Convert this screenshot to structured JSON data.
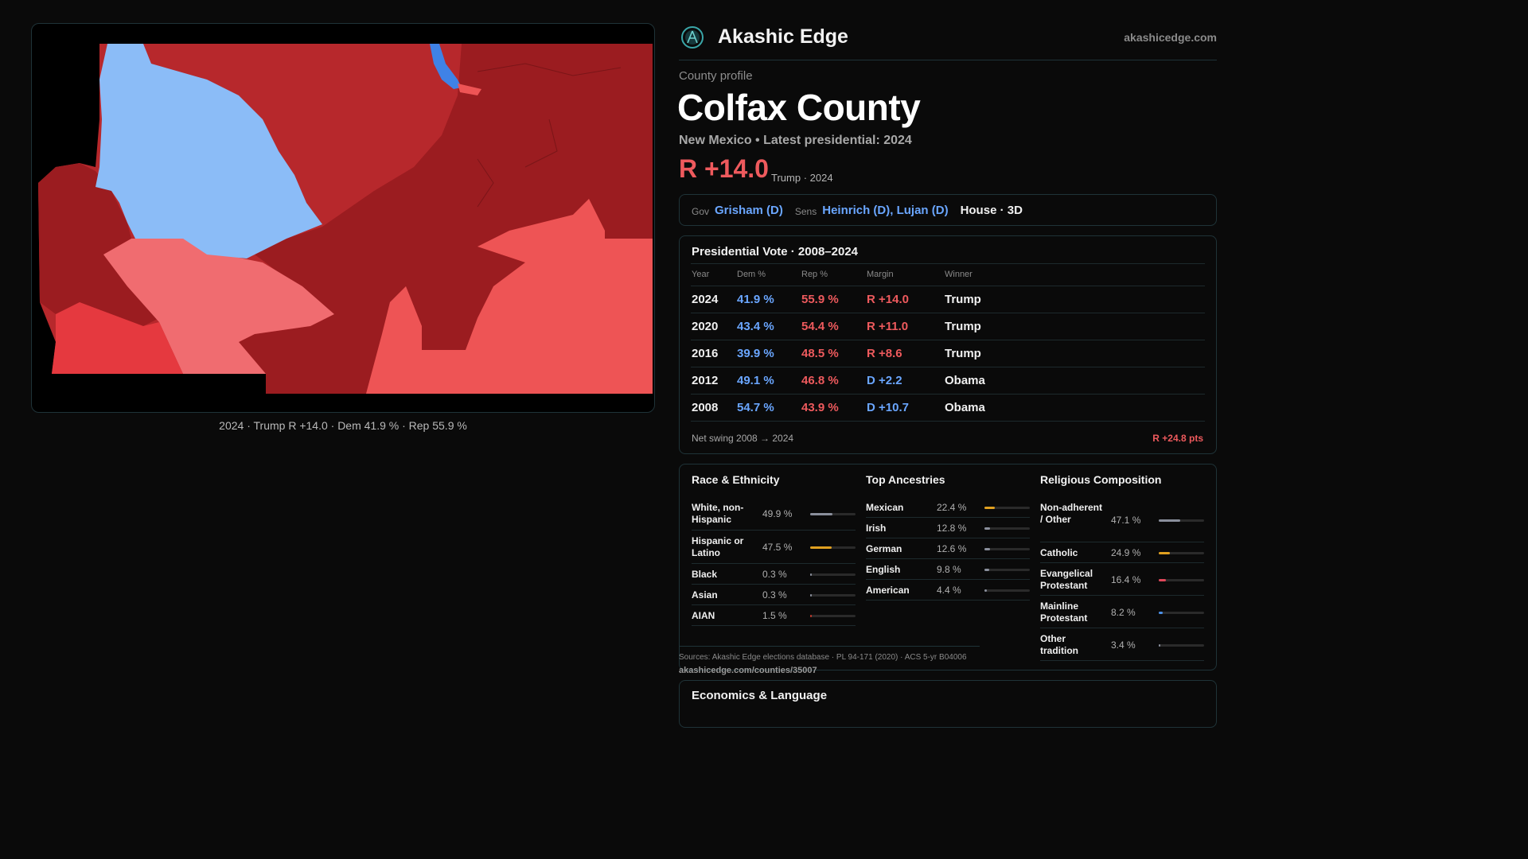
{
  "brand": {
    "name": "Akashic Edge",
    "url": "akashicedge.com"
  },
  "profile": {
    "label": "County profile",
    "county": "Colfax County",
    "subtitle": "New Mexico • Latest presidential: 2024",
    "margin": "R +14.0",
    "margin_note": "Trump · 2024"
  },
  "officials": {
    "gov_label": "Gov",
    "gov": "Grisham (D)",
    "sens_label": "Sens",
    "sens": "Heinrich (D), Lujan (D)",
    "house": "House · 3D"
  },
  "map": {
    "caption": "2024 · Trump R +14.0 · Dem 41.9 % · Rep 55.9 %",
    "colors": {
      "dem": "#8bbcf7",
      "dem_strong": "#3f82e6",
      "rep_dark": "#9b1c20",
      "rep_mid": "#b7282c",
      "rep_light": "#ee5455",
      "rep_pale": "#f06c70"
    }
  },
  "presidential": {
    "title": "Presidential Vote · 2008–2024",
    "headers": [
      "Year",
      "Dem %",
      "Rep %",
      "Margin",
      "Winner"
    ],
    "rows": [
      {
        "year": "2024",
        "dem": "41.9 %",
        "rep": "55.9 %",
        "margin": "R +14.0",
        "party": "R",
        "winner": "Trump"
      },
      {
        "year": "2020",
        "dem": "43.4 %",
        "rep": "54.4 %",
        "margin": "R +11.0",
        "party": "R",
        "winner": "Trump"
      },
      {
        "year": "2016",
        "dem": "39.9 %",
        "rep": "48.5 %",
        "margin": "R +8.6",
        "party": "R",
        "winner": "Trump"
      },
      {
        "year": "2012",
        "dem": "49.1 %",
        "rep": "46.8 %",
        "margin": "D +2.2",
        "party": "D",
        "winner": "Obama"
      },
      {
        "year": "2008",
        "dem": "54.7 %",
        "rep": "43.9 %",
        "margin": "D +10.7",
        "party": "D",
        "winner": "Obama"
      }
    ],
    "swing_label": "Net swing 2008 → 2024",
    "swing_value": "R +24.8 pts"
  },
  "race": {
    "title": "Race & Ethnicity",
    "rows": [
      {
        "label": "White, non-Hispanic",
        "value": "49.9 %",
        "pct": 49.9,
        "color": "#8a8f9c"
      },
      {
        "label": "Hispanic or Latino",
        "value": "47.5 %",
        "pct": 47.5,
        "color": "#e0a020"
      },
      {
        "label": "Black",
        "value": "0.3 %",
        "pct": 0.3,
        "color": "#8a8f9c"
      },
      {
        "label": "Asian",
        "value": "0.3 %",
        "pct": 0.3,
        "color": "#8a8f9c"
      },
      {
        "label": "AIAN",
        "value": "1.5 %",
        "pct": 1.5,
        "color": "#c0392b"
      }
    ]
  },
  "ancestry": {
    "title": "Top Ancestries",
    "rows": [
      {
        "label": "Mexican",
        "value": "22.4 %",
        "pct": 22.4,
        "color": "#e0a020"
      },
      {
        "label": "Irish",
        "value": "12.8 %",
        "pct": 12.8,
        "color": "#8a8f9c"
      },
      {
        "label": "German",
        "value": "12.6 %",
        "pct": 12.6,
        "color": "#8a8f9c"
      },
      {
        "label": "English",
        "value": "9.8 %",
        "pct": 9.8,
        "color": "#8a8f9c"
      },
      {
        "label": "American",
        "value": "4.4 %",
        "pct": 4.4,
        "color": "#8a8f9c"
      }
    ]
  },
  "religion": {
    "title": "Religious Composition",
    "rows": [
      {
        "label": "Non-adherent / Other",
        "value": "47.1 %",
        "pct": 47.1,
        "color": "#8a8f9c"
      },
      {
        "label": "Catholic",
        "value": "24.9 %",
        "pct": 24.9,
        "color": "#e0a020"
      },
      {
        "label": "Evangelical Protestant",
        "value": "16.4 %",
        "pct": 16.4,
        "color": "#e0475a"
      },
      {
        "label": "Mainline Protestant",
        "value": "8.2 %",
        "pct": 8.2,
        "color": "#4a8fe8"
      },
      {
        "label": "Other tradition",
        "value": "3.4 %",
        "pct": 3.4,
        "color": "#8a8f9c"
      }
    ]
  },
  "sources": "Sources: Akashic Edge elections database · PL 94-171 (2020) · ACS 5-yr B04006",
  "source_url": "akashicedge.com/counties/35007",
  "econ": {
    "title": "Economics & Language"
  }
}
